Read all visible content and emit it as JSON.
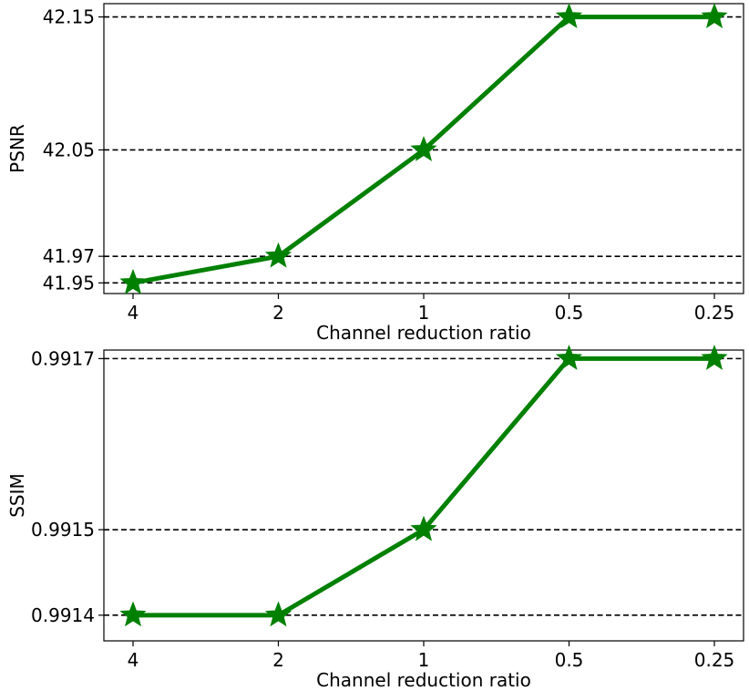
{
  "chart_data": [
    {
      "type": "line",
      "xlabel": "Channel reduction ratio",
      "ylabel": "PSNR",
      "categories": [
        "4",
        "2",
        "1",
        "0.5",
        "0.25"
      ],
      "series": [
        {
          "values": [
            41.95,
            41.97,
            42.05,
            42.15,
            42.15
          ],
          "color": "#008000",
          "marker": "star"
        }
      ],
      "yticks": [
        41.95,
        41.97,
        42.05,
        42.15
      ],
      "ytick_labels": [
        "41.95",
        "41.97",
        "42.05",
        "42.15"
      ],
      "ylim": [
        41.942,
        42.16
      ],
      "grid": "horizontal dashed at y ticks",
      "legend": "none"
    },
    {
      "type": "line",
      "xlabel": "Channel reduction ratio",
      "ylabel": "SSIM",
      "categories": [
        "4",
        "2",
        "1",
        "0.5",
        "0.25"
      ],
      "series": [
        {
          "values": [
            0.9914,
            0.9914,
            0.9915,
            0.9917,
            0.9917
          ],
          "color": "#008000",
          "marker": "star"
        }
      ],
      "yticks": [
        0.9914,
        0.9915,
        0.9917
      ],
      "ytick_labels": [
        "0.9914",
        "0.9915",
        "0.9917"
      ],
      "ylim": [
        0.99137,
        0.99171
      ],
      "grid": "horizontal dashed at y ticks",
      "legend": "none"
    }
  ]
}
